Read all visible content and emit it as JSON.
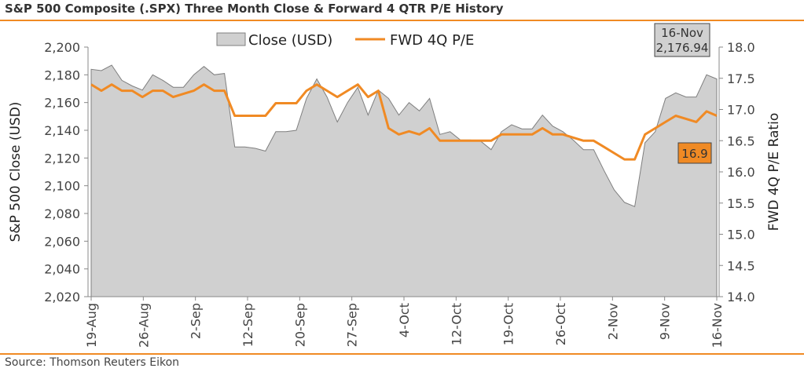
{
  "title": "S&P 500 Composite (.SPX) Three Month Close & Forward 4 QTR P/E History",
  "source": "Source: Thomson Reuters Eikon",
  "chart_data": {
    "type": "area",
    "title": "S&P 500 Composite (.SPX) Three Month Close & Forward 4 QTR P/E History",
    "ylabel": "S&P 500 Close (USD)",
    "y2label": "FWD 4Q P/E Ratio",
    "ylim": [
      2020,
      2200
    ],
    "y2lim": [
      14.0,
      18.0
    ],
    "y_ticks": [
      "2,020",
      "2,040",
      "2,060",
      "2,080",
      "2,100",
      "2,120",
      "2,140",
      "2,160",
      "2,180",
      "2,200"
    ],
    "y2_ticks": [
      "14.0",
      "14.5",
      "15.0",
      "15.5",
      "16.0",
      "16.5",
      "17.0",
      "17.5",
      "18.0"
    ],
    "x_ticks": [
      "19-Aug",
      "26-Aug",
      "2-Sep",
      "12-Sep",
      "20-Sep",
      "27-Sep",
      "4-Oct",
      "12-Oct",
      "19-Oct",
      "26-Oct",
      "2-Nov",
      "9-Nov",
      "16-Nov"
    ],
    "legend_position": "top-center",
    "grid": false,
    "colors": {
      "close": "#d0d0d0",
      "close_edge": "#7f7f7f",
      "pe": "#f08a24",
      "accent": "#f08a24"
    },
    "series": [
      {
        "name": "Close (USD)",
        "axis": "left",
        "kind": "area",
        "values": [
          2184,
          2183,
          2187,
          2176,
          2172,
          2169,
          2180,
          2176,
          2171,
          2171,
          2180,
          2186,
          2180,
          2181,
          2128,
          2128,
          2127,
          2125,
          2139,
          2139,
          2140,
          2163,
          2177,
          2164,
          2146,
          2160,
          2171,
          2151,
          2169,
          2163,
          2151,
          2160,
          2154,
          2163,
          2137,
          2139,
          2133,
          2133,
          2132,
          2126,
          2139,
          2144,
          2141,
          2141,
          2151,
          2143,
          2139,
          2133,
          2126,
          2126,
          2111,
          2097,
          2088,
          2085,
          2131,
          2139,
          2163,
          2167,
          2164,
          2164,
          2180,
          2177
        ]
      },
      {
        "name": "FWD 4Q P/E",
        "axis": "right",
        "kind": "line",
        "values": [
          17.4,
          17.3,
          17.4,
          17.3,
          17.3,
          17.2,
          17.3,
          17.3,
          17.2,
          17.25,
          17.3,
          17.4,
          17.3,
          17.3,
          16.9,
          16.9,
          16.9,
          16.9,
          17.1,
          17.1,
          17.1,
          17.3,
          17.4,
          17.3,
          17.2,
          17.3,
          17.4,
          17.2,
          17.3,
          16.7,
          16.6,
          16.65,
          16.6,
          16.7,
          16.5,
          16.5,
          16.5,
          16.5,
          16.5,
          16.5,
          16.6,
          16.6,
          16.6,
          16.6,
          16.7,
          16.6,
          16.6,
          16.55,
          16.5,
          16.5,
          16.4,
          16.3,
          16.2,
          16.2,
          16.6,
          16.7,
          16.8,
          16.9,
          16.85,
          16.8,
          16.97,
          16.9
        ]
      }
    ],
    "callouts": {
      "date": "16-Nov",
      "close": "2,176.94",
      "pe": "16.9"
    }
  }
}
